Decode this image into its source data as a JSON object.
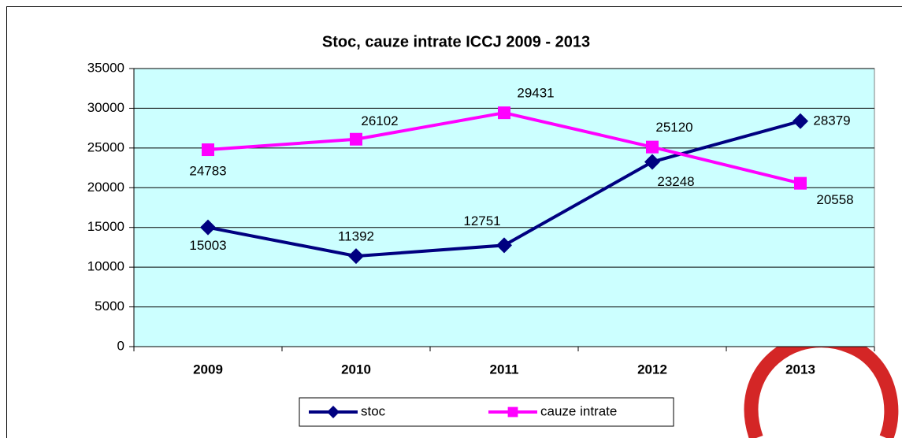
{
  "chart_data": {
    "type": "line",
    "title": "Stoc, cauze intrate ICCJ 2009 - 2013",
    "categories": [
      "2009",
      "2010",
      "2011",
      "2012",
      "2013"
    ],
    "series": [
      {
        "name": "stoc",
        "color": "#000080",
        "marker": "diamond",
        "values": [
          15003,
          11392,
          12751,
          23248,
          28379
        ]
      },
      {
        "name": "cauze intrate",
        "color": "#ff00ff",
        "marker": "square",
        "values": [
          24783,
          26102,
          29431,
          25120,
          20558
        ]
      }
    ],
    "ylim": [
      0,
      35000
    ],
    "yticks": [
      0,
      5000,
      10000,
      15000,
      20000,
      25000,
      30000,
      35000
    ],
    "grid": true,
    "legend": "bottom",
    "plot_background": "#ccffff"
  }
}
